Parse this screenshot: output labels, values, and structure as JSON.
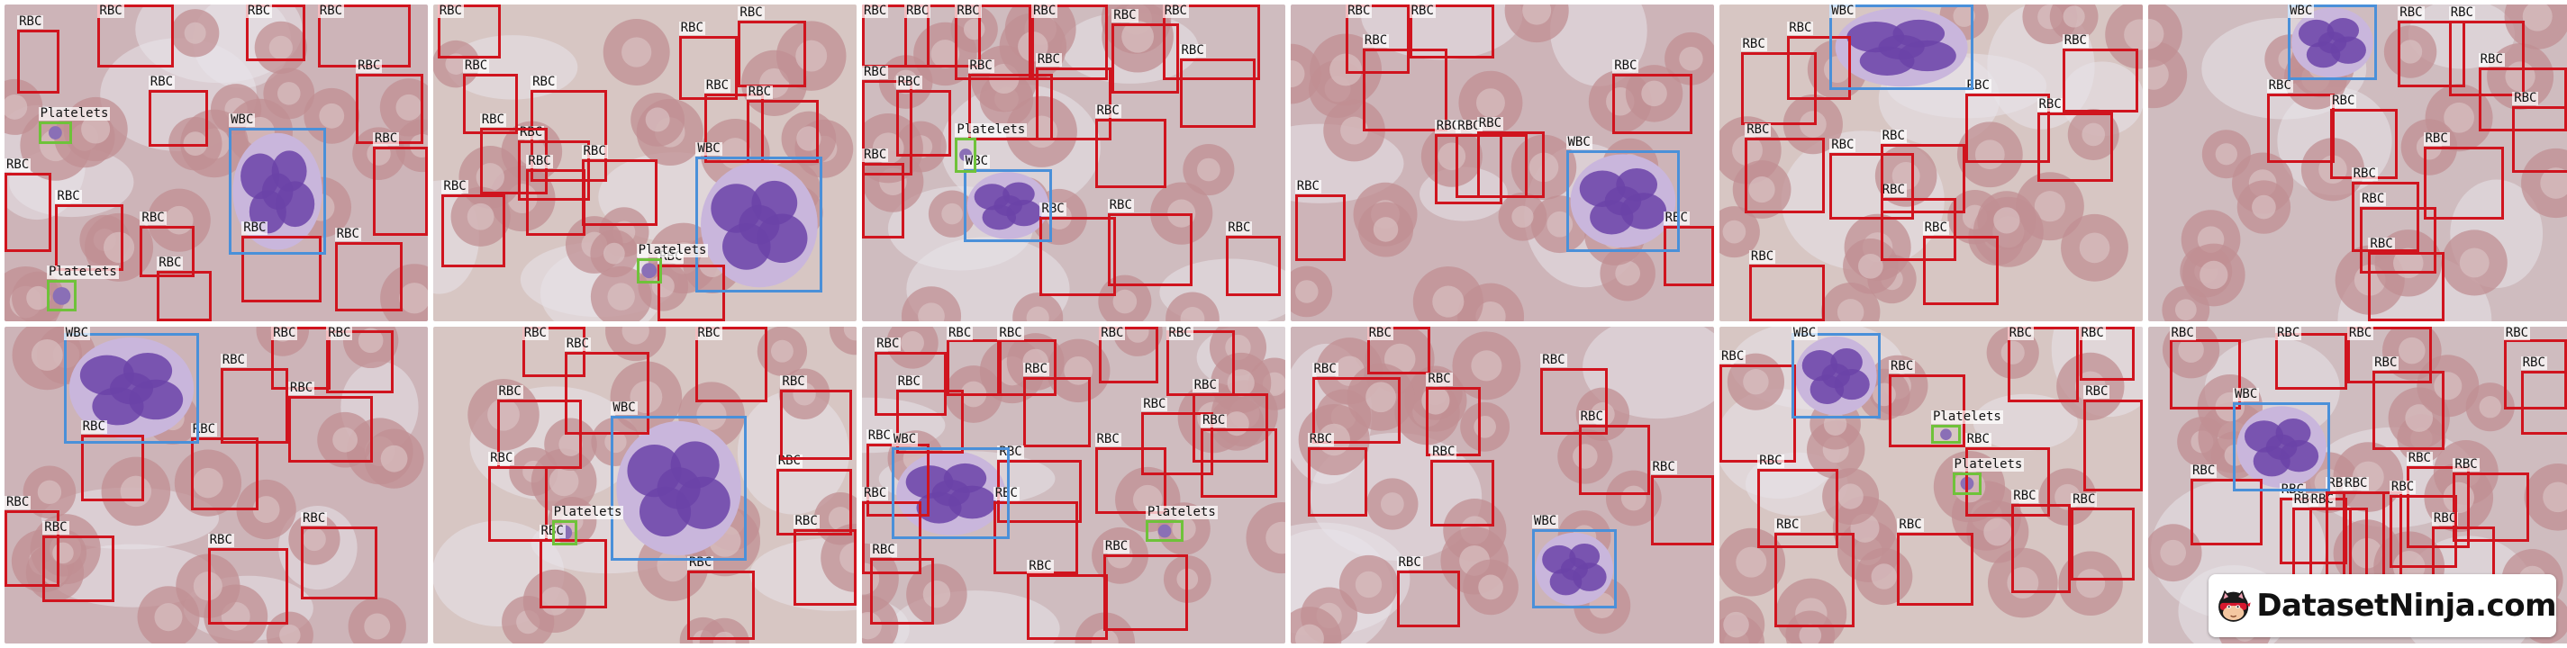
{
  "labels": {
    "rbc": "RBC",
    "wbc": "WBC",
    "platelets": "Platelets"
  },
  "colors": {
    "rbc": "#d0141e",
    "wbc": "#4a90d9",
    "platelets": "#6fc23a"
  },
  "brand": {
    "name": "DatasetNinja.com"
  },
  "tiles": [
    {
      "variant": 0,
      "boxes": [
        [
          "rbc",
          0.03,
          0.08,
          0.13,
          0.28
        ],
        [
          "rbc",
          0.22,
          0.0,
          0.4,
          0.2
        ],
        [
          "rbc",
          0.34,
          0.27,
          0.48,
          0.45
        ],
        [
          "rbc",
          0.57,
          0.0,
          0.71,
          0.18
        ],
        [
          "rbc",
          0.74,
          0.0,
          0.96,
          0.2
        ],
        [
          "rbc",
          0.83,
          0.22,
          0.99,
          0.44
        ],
        [
          "rbc",
          0.87,
          0.45,
          1.0,
          0.73
        ],
        [
          "rbc",
          0.0,
          0.53,
          0.11,
          0.78
        ],
        [
          "rbc",
          0.12,
          0.63,
          0.28,
          0.84
        ],
        [
          "rbc",
          0.32,
          0.7,
          0.45,
          0.86
        ],
        [
          "rbc",
          0.36,
          0.84,
          0.49,
          1.0
        ],
        [
          "rbc",
          0.56,
          0.73,
          0.75,
          0.94
        ],
        [
          "rbc",
          0.78,
          0.75,
          0.94,
          0.97
        ],
        [
          "wbc",
          0.53,
          0.39,
          0.76,
          0.79
        ],
        [
          "platelets",
          0.08,
          0.37,
          0.16,
          0.44
        ],
        [
          "platelets",
          0.1,
          0.87,
          0.17,
          0.97
        ]
      ]
    },
    {
      "variant": 1,
      "boxes": [
        [
          "rbc",
          0.01,
          0.0,
          0.16,
          0.17
        ],
        [
          "rbc",
          0.07,
          0.22,
          0.2,
          0.41
        ],
        [
          "rbc",
          0.23,
          0.27,
          0.41,
          0.56
        ],
        [
          "rbc",
          0.2,
          0.43,
          0.37,
          0.62
        ],
        [
          "rbc",
          0.02,
          0.6,
          0.17,
          0.83
        ],
        [
          "rbc",
          0.11,
          0.39,
          0.27,
          0.6
        ],
        [
          "rbc",
          0.22,
          0.52,
          0.36,
          0.73
        ],
        [
          "rbc",
          0.35,
          0.49,
          0.53,
          0.7
        ],
        [
          "rbc",
          0.58,
          0.1,
          0.72,
          0.3
        ],
        [
          "rbc",
          0.72,
          0.05,
          0.88,
          0.26
        ],
        [
          "rbc",
          0.64,
          0.28,
          0.78,
          0.5
        ],
        [
          "rbc",
          0.74,
          0.3,
          0.91,
          0.5
        ],
        [
          "rbc",
          0.53,
          0.82,
          0.69,
          1.0
        ],
        [
          "wbc",
          0.62,
          0.48,
          0.92,
          0.91
        ],
        [
          "platelets",
          0.48,
          0.8,
          0.54,
          0.88
        ]
      ]
    },
    {
      "variant": 2,
      "boxes": [
        [
          "rbc",
          0.0,
          0.0,
          0.16,
          0.2
        ],
        [
          "rbc",
          0.1,
          0.0,
          0.28,
          0.2
        ],
        [
          "rbc",
          0.22,
          0.0,
          0.4,
          0.24
        ],
        [
          "rbc",
          0.4,
          0.0,
          0.58,
          0.24
        ],
        [
          "rbc",
          0.59,
          0.06,
          0.75,
          0.28
        ],
        [
          "rbc",
          0.71,
          0.0,
          0.94,
          0.24
        ],
        [
          "rbc",
          0.75,
          0.17,
          0.93,
          0.39
        ],
        [
          "rbc",
          0.0,
          0.24,
          0.12,
          0.54
        ],
        [
          "rbc",
          0.08,
          0.27,
          0.21,
          0.48
        ],
        [
          "rbc",
          0.25,
          0.22,
          0.45,
          0.43
        ],
        [
          "rbc",
          0.41,
          0.2,
          0.59,
          0.43
        ],
        [
          "rbc",
          0.55,
          0.36,
          0.72,
          0.58
        ],
        [
          "rbc",
          0.0,
          0.5,
          0.1,
          0.74
        ],
        [
          "rbc",
          0.42,
          0.67,
          0.6,
          0.92
        ],
        [
          "rbc",
          0.58,
          0.66,
          0.78,
          0.89
        ],
        [
          "rbc",
          0.86,
          0.73,
          0.99,
          0.92
        ],
        [
          "wbc",
          0.24,
          0.52,
          0.45,
          0.75
        ],
        [
          "platelets",
          0.22,
          0.42,
          0.27,
          0.53
        ]
      ]
    },
    {
      "variant": 3,
      "boxes": [
        [
          "rbc",
          0.13,
          0.0,
          0.28,
          0.22
        ],
        [
          "rbc",
          0.28,
          0.0,
          0.48,
          0.17
        ],
        [
          "rbc",
          0.17,
          0.14,
          0.37,
          0.4
        ],
        [
          "rbc",
          0.34,
          0.41,
          0.5,
          0.63
        ],
        [
          "rbc",
          0.39,
          0.41,
          0.56,
          0.61
        ],
        [
          "rbc",
          0.44,
          0.4,
          0.6,
          0.61
        ],
        [
          "rbc",
          0.76,
          0.22,
          0.95,
          0.41
        ],
        [
          "rbc",
          0.88,
          0.7,
          1.0,
          0.89
        ],
        [
          "rbc",
          0.01,
          0.6,
          0.13,
          0.81
        ],
        [
          "wbc",
          0.65,
          0.46,
          0.92,
          0.78
        ]
      ]
    },
    {
      "variant": 4,
      "boxes": [
        [
          "rbc",
          0.05,
          0.15,
          0.23,
          0.38
        ],
        [
          "rbc",
          0.16,
          0.1,
          0.31,
          0.3
        ],
        [
          "rbc",
          0.06,
          0.42,
          0.25,
          0.66
        ],
        [
          "rbc",
          0.26,
          0.47,
          0.46,
          0.68
        ],
        [
          "rbc",
          0.38,
          0.61,
          0.56,
          0.81
        ],
        [
          "rbc",
          0.38,
          0.44,
          0.58,
          0.66
        ],
        [
          "rbc",
          0.58,
          0.28,
          0.78,
          0.5
        ],
        [
          "rbc",
          0.75,
          0.34,
          0.93,
          0.56
        ],
        [
          "rbc",
          0.81,
          0.14,
          0.99,
          0.34
        ],
        [
          "rbc",
          0.48,
          0.73,
          0.66,
          0.95
        ],
        [
          "rbc",
          0.07,
          0.82,
          0.25,
          1.0
        ],
        [
          "wbc",
          0.26,
          0.0,
          0.6,
          0.27
        ]
      ]
    },
    {
      "variant": 5,
      "boxes": [
        [
          "rbc",
          0.59,
          0.05,
          0.75,
          0.26
        ],
        [
          "rbc",
          0.71,
          0.05,
          0.89,
          0.29
        ],
        [
          "rbc",
          0.78,
          0.2,
          0.99,
          0.4
        ],
        [
          "rbc",
          0.28,
          0.28,
          0.44,
          0.5
        ],
        [
          "rbc",
          0.43,
          0.33,
          0.59,
          0.55
        ],
        [
          "rbc",
          0.65,
          0.45,
          0.84,
          0.68
        ],
        [
          "rbc",
          0.86,
          0.32,
          1.0,
          0.53
        ],
        [
          "rbc",
          0.5,
          0.64,
          0.68,
          0.85
        ],
        [
          "rbc",
          0.52,
          0.78,
          0.7,
          1.0
        ],
        [
          "rbc",
          0.48,
          0.56,
          0.64,
          0.78
        ],
        [
          "wbc",
          0.33,
          0.0,
          0.54,
          0.24
        ]
      ]
    },
    {
      "variant": 6,
      "boxes": [
        [
          "rbc",
          0.51,
          0.13,
          0.67,
          0.37
        ],
        [
          "rbc",
          0.63,
          0.0,
          0.77,
          0.2
        ],
        [
          "rbc",
          0.76,
          0.01,
          0.92,
          0.21
        ],
        [
          "rbc",
          0.67,
          0.22,
          0.87,
          0.43
        ],
        [
          "rbc",
          0.18,
          0.34,
          0.33,
          0.55
        ],
        [
          "rbc",
          0.44,
          0.35,
          0.6,
          0.58
        ],
        [
          "rbc",
          0.0,
          0.58,
          0.13,
          0.82
        ],
        [
          "rbc",
          0.09,
          0.66,
          0.26,
          0.87
        ],
        [
          "rbc",
          0.48,
          0.7,
          0.67,
          0.94
        ],
        [
          "rbc",
          0.7,
          0.63,
          0.88,
          0.86
        ],
        [
          "wbc",
          0.14,
          0.02,
          0.46,
          0.37
        ]
      ]
    },
    {
      "variant": 7,
      "boxes": [
        [
          "rbc",
          0.21,
          0.0,
          0.36,
          0.16
        ],
        [
          "rbc",
          0.31,
          0.08,
          0.51,
          0.34
        ],
        [
          "rbc",
          0.15,
          0.23,
          0.35,
          0.45
        ],
        [
          "rbc",
          0.13,
          0.44,
          0.27,
          0.68
        ],
        [
          "rbc",
          0.25,
          0.67,
          0.41,
          0.89
        ],
        [
          "rbc",
          0.62,
          0.0,
          0.79,
          0.24
        ],
        [
          "rbc",
          0.81,
          0.45,
          0.99,
          0.66
        ],
        [
          "rbc",
          0.85,
          0.64,
          1.0,
          0.88
        ],
        [
          "rbc",
          0.82,
          0.2,
          0.99,
          0.42
        ],
        [
          "rbc",
          0.6,
          0.77,
          0.76,
          0.99
        ],
        [
          "wbc",
          0.42,
          0.28,
          0.74,
          0.74
        ],
        [
          "platelets",
          0.28,
          0.61,
          0.34,
          0.69
        ]
      ]
    },
    {
      "variant": 8,
      "boxes": [
        [
          "rbc",
          0.03,
          0.08,
          0.2,
          0.28
        ],
        [
          "rbc",
          0.08,
          0.2,
          0.24,
          0.4
        ],
        [
          "rbc",
          0.2,
          0.04,
          0.33,
          0.22
        ],
        [
          "rbc",
          0.32,
          0.04,
          0.46,
          0.22
        ],
        [
          "rbc",
          0.38,
          0.16,
          0.54,
          0.38
        ],
        [
          "rbc",
          0.01,
          0.37,
          0.16,
          0.6
        ],
        [
          "rbc",
          0.0,
          0.55,
          0.14,
          0.78
        ],
        [
          "rbc",
          0.02,
          0.73,
          0.17,
          0.94
        ],
        [
          "rbc",
          0.32,
          0.42,
          0.52,
          0.62
        ],
        [
          "rbc",
          0.31,
          0.55,
          0.51,
          0.78
        ],
        [
          "rbc",
          0.55,
          0.38,
          0.72,
          0.59
        ],
        [
          "rbc",
          0.66,
          0.27,
          0.83,
          0.47
        ],
        [
          "rbc",
          0.72,
          0.01,
          0.88,
          0.22
        ],
        [
          "rbc",
          0.78,
          0.21,
          0.96,
          0.43
        ],
        [
          "rbc",
          0.8,
          0.32,
          0.98,
          0.54
        ],
        [
          "rbc",
          0.56,
          0.0,
          0.7,
          0.18
        ],
        [
          "rbc",
          0.39,
          0.78,
          0.58,
          0.99
        ],
        [
          "rbc",
          0.57,
          0.72,
          0.77,
          0.96
        ],
        [
          "wbc",
          0.07,
          0.38,
          0.35,
          0.67
        ],
        [
          "platelets",
          0.67,
          0.61,
          0.76,
          0.68
        ]
      ]
    },
    {
      "variant": 9,
      "boxes": [
        [
          "rbc",
          0.18,
          0.0,
          0.33,
          0.15
        ],
        [
          "rbc",
          0.05,
          0.16,
          0.26,
          0.37
        ],
        [
          "rbc",
          0.32,
          0.19,
          0.45,
          0.41
        ],
        [
          "rbc",
          0.04,
          0.38,
          0.18,
          0.6
        ],
        [
          "rbc",
          0.33,
          0.42,
          0.48,
          0.63
        ],
        [
          "rbc",
          0.59,
          0.13,
          0.75,
          0.34
        ],
        [
          "rbc",
          0.68,
          0.31,
          0.85,
          0.53
        ],
        [
          "rbc",
          0.85,
          0.47,
          1.0,
          0.69
        ],
        [
          "rbc",
          0.25,
          0.77,
          0.4,
          0.95
        ],
        [
          "wbc",
          0.57,
          0.64,
          0.77,
          0.89
        ]
      ]
    },
    {
      "variant": 10,
      "boxes": [
        [
          "rbc",
          0.0,
          0.12,
          0.18,
          0.43
        ],
        [
          "rbc",
          0.09,
          0.45,
          0.28,
          0.7
        ],
        [
          "rbc",
          0.13,
          0.65,
          0.32,
          0.95
        ],
        [
          "rbc",
          0.4,
          0.15,
          0.58,
          0.38
        ],
        [
          "rbc",
          0.42,
          0.65,
          0.6,
          0.88
        ],
        [
          "rbc",
          0.58,
          0.38,
          0.78,
          0.6
        ],
        [
          "rbc",
          0.68,
          0.0,
          0.85,
          0.24
        ],
        [
          "rbc",
          0.85,
          0.0,
          0.98,
          0.17
        ],
        [
          "rbc",
          0.86,
          0.23,
          1.0,
          0.52
        ],
        [
          "rbc",
          0.69,
          0.56,
          0.83,
          0.84
        ],
        [
          "rbc",
          0.83,
          0.57,
          0.98,
          0.8
        ],
        [
          "wbc",
          0.17,
          0.02,
          0.38,
          0.29
        ],
        [
          "platelets",
          0.5,
          0.31,
          0.57,
          0.37
        ],
        [
          "platelets",
          0.55,
          0.46,
          0.62,
          0.53
        ]
      ]
    },
    {
      "variant": 11,
      "boxes": [
        [
          "rbc",
          0.05,
          0.04,
          0.22,
          0.26
        ],
        [
          "rbc",
          0.3,
          0.02,
          0.47,
          0.2
        ],
        [
          "rbc",
          0.47,
          0.0,
          0.67,
          0.18
        ],
        [
          "rbc",
          0.53,
          0.14,
          0.7,
          0.39
        ],
        [
          "rbc",
          0.84,
          0.04,
          0.99,
          0.26
        ],
        [
          "rbc",
          0.88,
          0.14,
          1.0,
          0.34
        ],
        [
          "rbc",
          0.1,
          0.48,
          0.27,
          0.69
        ],
        [
          "rbc",
          0.31,
          0.54,
          0.47,
          0.75
        ],
        [
          "rbc",
          0.34,
          0.57,
          0.48,
          0.97
        ],
        [
          "rbc",
          0.38,
          0.57,
          0.52,
          0.98
        ],
        [
          "rbc",
          0.42,
          0.52,
          0.56,
          0.96
        ],
        [
          "rbc",
          0.46,
          0.52,
          0.6,
          0.93
        ],
        [
          "rbc",
          0.61,
          0.44,
          0.76,
          0.7
        ],
        [
          "rbc",
          0.72,
          0.46,
          0.9,
          0.68
        ],
        [
          "rbc",
          0.67,
          0.63,
          0.82,
          0.83
        ],
        [
          "rbc",
          0.57,
          0.53,
          0.73,
          0.76
        ],
        [
          "wbc",
          0.2,
          0.24,
          0.43,
          0.52
        ]
      ]
    }
  ]
}
